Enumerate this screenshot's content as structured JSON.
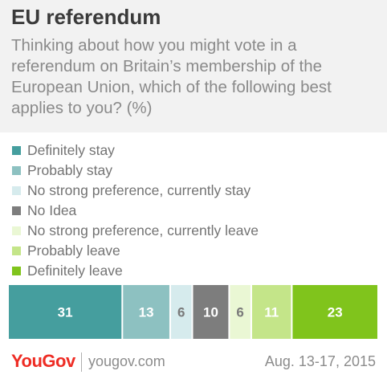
{
  "header": {
    "title": "EU referendum",
    "subtitle": "Thinking about how you might vote in a referendum on Britain’s membership of the European Union, which of the following best applies to you? (%)"
  },
  "chart_data": {
    "type": "bar",
    "orientation": "horizontal-stacked",
    "title": "EU referendum",
    "subtitle": "Thinking about how you might vote in a referendum on Britain’s membership of the European Union, which of the following best applies to you? (%)",
    "legend_position": "top-left",
    "series": [
      {
        "name": "Definitely stay",
        "value": 31,
        "color": "#459e9e",
        "label_color": "#ffffff"
      },
      {
        "name": "Probably stay",
        "value": 13,
        "color": "#8dc1c1",
        "label_color": "#ffffff"
      },
      {
        "name": "No strong preference, currently stay",
        "value": 6,
        "color": "#d6ebed",
        "label_color": "#7a7a7a"
      },
      {
        "name": "No Idea",
        "value": 10,
        "color": "#7d7d7d",
        "label_color": "#ffffff"
      },
      {
        "name": "No strong preference, currently leave",
        "value": 6,
        "color": "#eaf7d4",
        "label_color": "#7a7a7a"
      },
      {
        "name": "Probably leave",
        "value": 11,
        "color": "#c4e589",
        "label_color": "#ffffff"
      },
      {
        "name": "Definitely leave",
        "value": 23,
        "color": "#80c41c",
        "label_color": "#ffffff"
      }
    ]
  },
  "footer": {
    "logo_you": "You",
    "logo_gov": "Gov",
    "site": "yougov.com",
    "date": "Aug. 13-17, 2015"
  }
}
